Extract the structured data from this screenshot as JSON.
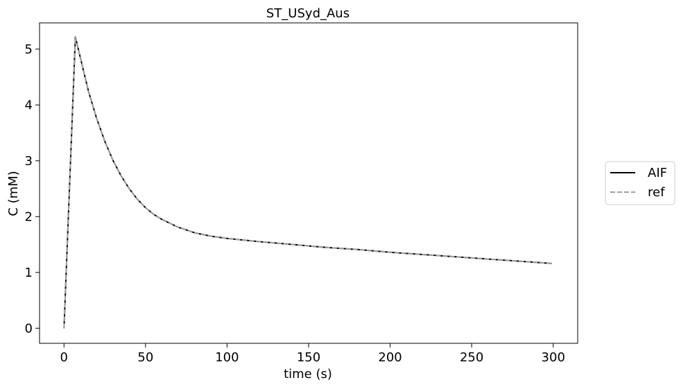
{
  "chart_data": {
    "type": "line",
    "title": "ST_USyd_Aus",
    "xlabel": "time (s)",
    "ylabel": "C (mM)",
    "xlim": [
      -15,
      315
    ],
    "ylim": [
      -0.27,
      5.47
    ],
    "xticks": [
      0,
      50,
      100,
      150,
      200,
      250,
      300
    ],
    "yticks": [
      0,
      1,
      2,
      3,
      4,
      5
    ],
    "grid": false,
    "legend_position": "right, outside plot",
    "series": [
      {
        "name": "AIF",
        "color": "#000000",
        "style": "solid",
        "x": [
          0,
          7,
          10,
          15,
          20,
          25,
          30,
          35,
          40,
          45,
          50,
          55,
          60,
          70,
          80,
          90,
          100,
          120,
          140,
          160,
          180,
          200,
          220,
          240,
          260,
          280,
          299
        ],
        "y": [
          0,
          5.22,
          4.85,
          4.25,
          3.76,
          3.35,
          3.01,
          2.73,
          2.5,
          2.31,
          2.16,
          2.04,
          1.95,
          1.81,
          1.71,
          1.65,
          1.61,
          1.55,
          1.5,
          1.45,
          1.41,
          1.36,
          1.32,
          1.28,
          1.24,
          1.2,
          1.16
        ]
      },
      {
        "name": "ref",
        "color": "#a0a0a0",
        "style": "dashed",
        "x": [
          0,
          7,
          10,
          15,
          20,
          25,
          30,
          35,
          40,
          45,
          50,
          55,
          60,
          70,
          80,
          90,
          100,
          120,
          140,
          160,
          180,
          200,
          220,
          240,
          260,
          280,
          299
        ],
        "y": [
          0,
          5.22,
          4.85,
          4.25,
          3.76,
          3.35,
          3.01,
          2.73,
          2.5,
          2.31,
          2.16,
          2.04,
          1.95,
          1.81,
          1.71,
          1.65,
          1.61,
          1.55,
          1.5,
          1.45,
          1.41,
          1.36,
          1.32,
          1.28,
          1.24,
          1.2,
          1.16
        ]
      }
    ]
  }
}
